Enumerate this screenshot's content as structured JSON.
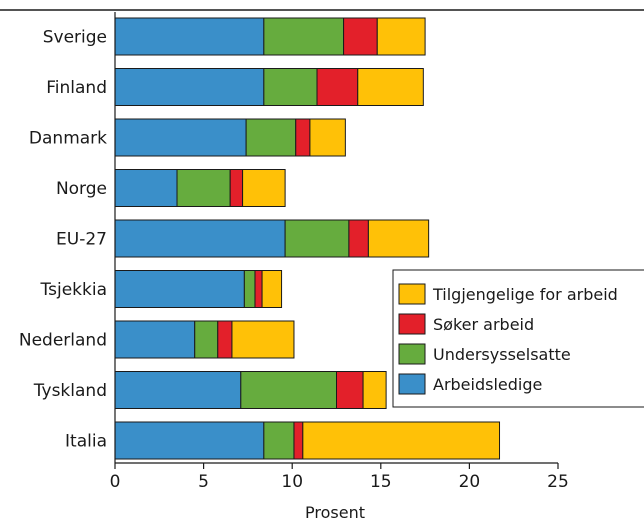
{
  "chart_data": {
    "type": "bar",
    "orientation": "horizontal",
    "stacked": true,
    "categories": [
      "Sverige",
      "Finland",
      "Danmark",
      "Norge",
      "EU-27",
      "Tsjekkia",
      "Nederland",
      "Tyskland",
      "Italia"
    ],
    "series": [
      {
        "name": "Arbeidsledige",
        "color": "#3a8fc9",
        "values": [
          8.4,
          8.4,
          7.4,
          3.5,
          9.6,
          7.3,
          4.5,
          7.1,
          8.4
        ]
      },
      {
        "name": "Undersysselsatte",
        "color": "#66ac3e",
        "values": [
          4.5,
          3.0,
          2.8,
          3.0,
          3.6,
          0.6,
          1.3,
          5.4,
          1.7
        ]
      },
      {
        "name": "Søker arbeid",
        "color": "#e3202a",
        "values": [
          1.9,
          2.3,
          0.8,
          0.7,
          1.1,
          0.4,
          0.8,
          1.5,
          0.5
        ]
      },
      {
        "name": "Tilgjengelige for arbeid",
        "color": "#ffc107",
        "values": [
          2.7,
          3.7,
          2.0,
          2.4,
          3.4,
          1.1,
          3.5,
          1.3,
          11.1
        ]
      }
    ],
    "xlim": [
      0,
      25
    ],
    "xticks": [
      0,
      5,
      10,
      15,
      20,
      25
    ],
    "xlabel": "Prosent",
    "ylabel": "",
    "title": "",
    "legend_position": "right",
    "legend_order": [
      "Tilgjengelige for arbeid",
      "Søker arbeid",
      "Undersysselsatte",
      "Arbeidsledige"
    ]
  }
}
